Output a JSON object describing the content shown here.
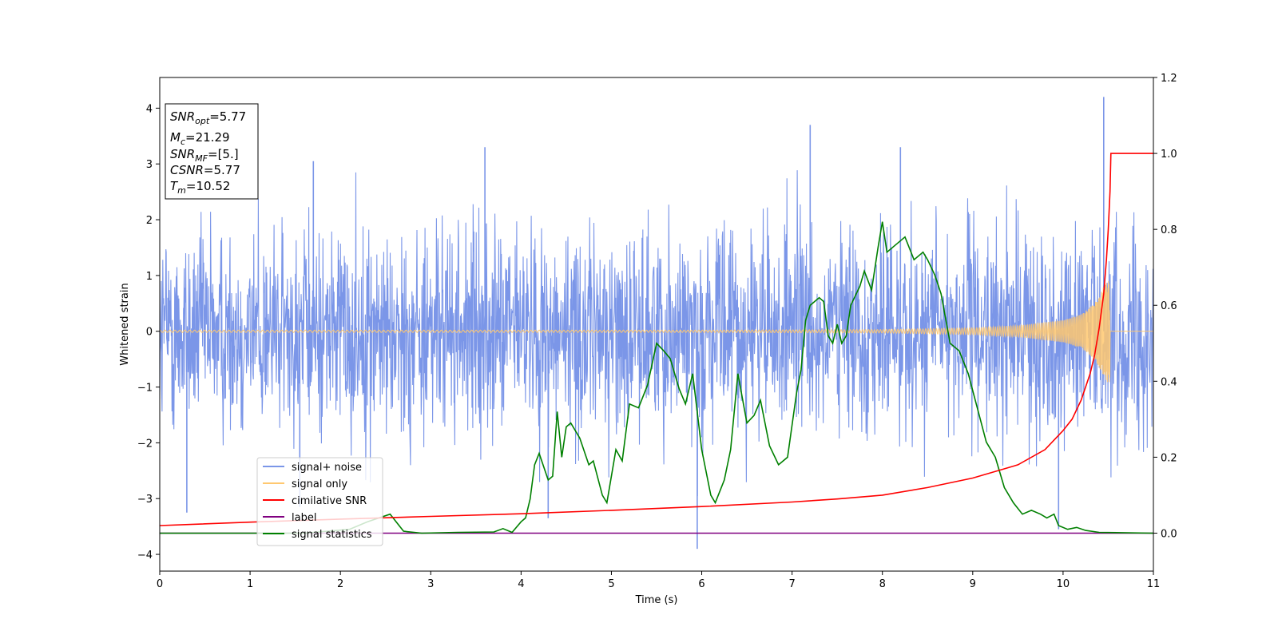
{
  "chart_data": {
    "type": "line",
    "title": "",
    "xlabel": "Time (s)",
    "ylabel": "Whitened strain",
    "xlim": [
      0,
      11
    ],
    "ylim": [
      -4.3,
      4.55
    ],
    "y2lim": [
      -0.1,
      1.2
    ],
    "x_ticks": [
      "0",
      "1",
      "2",
      "3",
      "4",
      "5",
      "6",
      "7",
      "8",
      "9",
      "10",
      "11"
    ],
    "y_ticks": [
      "−4",
      "−3",
      "−2",
      "−1",
      "0",
      "1",
      "2",
      "3",
      "4"
    ],
    "y2_ticks": [
      "0.0",
      "0.2",
      "0.4",
      "0.6",
      "0.8",
      "1.0",
      "1.2"
    ],
    "grid": false,
    "legend_position": "lower-left",
    "legend": [
      "signal+ noise",
      "signal only",
      "cimilative SNR",
      "label",
      "signal statistics"
    ],
    "info_box": {
      "snr_opt": {
        "base": "SNR",
        "sub": "opt",
        "value": "=5.77"
      },
      "mc": {
        "base": "M",
        "sub": "c",
        "value": "=21.29"
      },
      "snr_mf": {
        "base": "SNR",
        "sub": "MF",
        "value": "=[5.]"
      },
      "csnr": {
        "base": "CSNR",
        "value": "=5.77"
      },
      "tm": {
        "base": "T",
        "sub": "m",
        "value": "=10.52"
      }
    },
    "series": [
      {
        "name": "signal+ noise",
        "axis": "left",
        "color": "#7b96e8",
        "description_values": "dense noise, mostly within -2.5..3, spikes to 4.2 near t=10.45 and -3.9 near t=5.95",
        "notable_points": [
          [
            0.3,
            -3.25
          ],
          [
            1.55,
            -3.15
          ],
          [
            1.7,
            3.05
          ],
          [
            3.6,
            3.3
          ],
          [
            4.3,
            -3.35
          ],
          [
            5.95,
            -3.9
          ],
          [
            7.2,
            3.7
          ],
          [
            8.2,
            3.3
          ],
          [
            9.95,
            -3.55
          ],
          [
            10.45,
            4.2
          ]
        ]
      },
      {
        "name": "signal only",
        "axis": "left",
        "color": "#ffc870",
        "chirp_end_time": 10.52,
        "x": [
          0,
          6,
          8,
          9,
          9.5,
          10,
          10.2,
          10.35,
          10.45,
          10.52
        ],
        "amplitude": [
          0.02,
          0.02,
          0.03,
          0.06,
          0.1,
          0.2,
          0.3,
          0.5,
          0.8,
          1.0
        ]
      },
      {
        "name": "cimilative SNR",
        "axis": "right",
        "color": "#ff0000",
        "x": [
          0,
          1,
          2,
          3,
          4,
          5,
          6,
          7,
          7.5,
          8,
          8.5,
          9,
          9.5,
          9.8,
          10,
          10.1,
          10.2,
          10.3,
          10.35,
          10.4,
          10.45,
          10.48,
          10.5,
          10.52,
          10.53,
          11
        ],
        "values": [
          0.02,
          0.029,
          0.037,
          0.044,
          0.051,
          0.06,
          0.07,
          0.082,
          0.09,
          0.1,
          0.12,
          0.145,
          0.18,
          0.22,
          0.27,
          0.3,
          0.35,
          0.42,
          0.47,
          0.54,
          0.63,
          0.72,
          0.8,
          0.9,
          1.0,
          1.0
        ]
      },
      {
        "name": "label",
        "axis": "right",
        "color": "#800080",
        "x": [
          0,
          11
        ],
        "values": [
          0,
          0
        ]
      },
      {
        "name": "signal statistics",
        "axis": "right",
        "color": "#008000",
        "x": [
          0,
          1.6,
          2.1,
          2.3,
          2.55,
          2.7,
          2.9,
          3.3,
          3.7,
          3.8,
          3.9,
          4.0,
          4.05,
          4.1,
          4.15,
          4.2,
          4.3,
          4.35,
          4.4,
          4.45,
          4.5,
          4.55,
          4.65,
          4.75,
          4.8,
          4.9,
          4.95,
          5.05,
          5.12,
          5.2,
          5.3,
          5.4,
          5.5,
          5.58,
          5.65,
          5.75,
          5.82,
          5.9,
          6.0,
          6.1,
          6.15,
          6.25,
          6.32,
          6.4,
          6.5,
          6.58,
          6.65,
          6.75,
          6.85,
          6.95,
          7.05,
          7.1,
          7.15,
          7.2,
          7.3,
          7.35,
          7.4,
          7.45,
          7.5,
          7.55,
          7.6,
          7.65,
          7.75,
          7.8,
          7.88,
          7.95,
          8.0,
          8.05,
          8.15,
          8.25,
          8.35,
          8.45,
          8.5,
          8.58,
          8.65,
          8.75,
          8.85,
          8.95,
          9.05,
          9.15,
          9.25,
          9.35,
          9.45,
          9.55,
          9.65,
          9.75,
          9.82,
          9.9,
          9.95,
          10.05,
          10.15,
          10.25,
          10.4,
          11
        ],
        "values": [
          0.0,
          0.0,
          0.01,
          0.03,
          0.05,
          0.005,
          0.0,
          0.002,
          0.003,
          0.012,
          0.002,
          0.03,
          0.04,
          0.09,
          0.18,
          0.21,
          0.14,
          0.15,
          0.32,
          0.2,
          0.28,
          0.29,
          0.25,
          0.18,
          0.19,
          0.1,
          0.08,
          0.22,
          0.19,
          0.34,
          0.33,
          0.39,
          0.5,
          0.48,
          0.46,
          0.38,
          0.34,
          0.42,
          0.22,
          0.1,
          0.08,
          0.14,
          0.22,
          0.42,
          0.29,
          0.31,
          0.35,
          0.23,
          0.18,
          0.2,
          0.37,
          0.43,
          0.56,
          0.6,
          0.62,
          0.61,
          0.52,
          0.5,
          0.55,
          0.5,
          0.52,
          0.6,
          0.65,
          0.69,
          0.64,
          0.75,
          0.82,
          0.74,
          0.76,
          0.78,
          0.72,
          0.74,
          0.72,
          0.68,
          0.63,
          0.5,
          0.48,
          0.42,
          0.33,
          0.24,
          0.2,
          0.12,
          0.08,
          0.05,
          0.06,
          0.05,
          0.04,
          0.05,
          0.02,
          0.01,
          0.015,
          0.007,
          0.002,
          0.0
        ]
      }
    ]
  }
}
